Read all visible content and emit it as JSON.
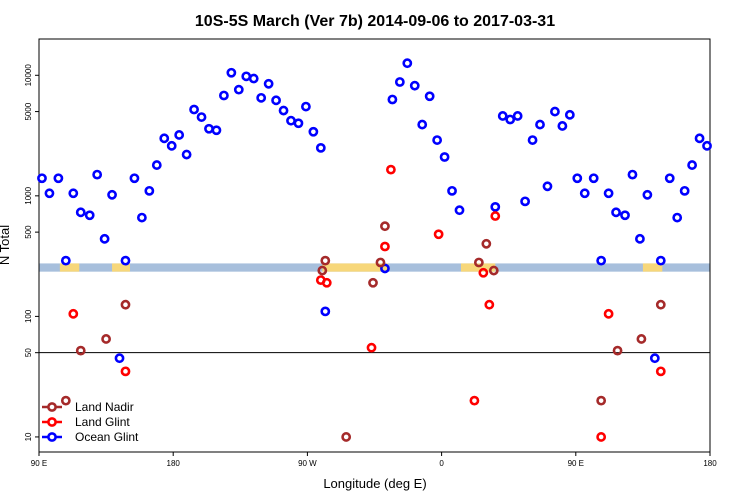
{
  "chart_data": {
    "type": "scatter",
    "title": "10S-5S March (Ver 7b)   2014-09-06 to 2017-03-31",
    "xlabel": "Longitude (deg E)",
    "ylabel": "N Total",
    "x_axis": {
      "range_deg_from_90E": [
        0,
        450
      ],
      "ticks": [
        {
          "value": 0,
          "label": "90 E"
        },
        {
          "value": 90,
          "label": "180"
        },
        {
          "value": 180,
          "label": "90 W"
        },
        {
          "value": 270,
          "label": "0"
        },
        {
          "value": 360,
          "label": "90 E"
        },
        {
          "value": 450,
          "label": "180"
        }
      ]
    },
    "y_axis": {
      "scale": "log",
      "range": [
        7.5,
        20000
      ],
      "ticks": [
        {
          "value": 10,
          "label": "10"
        },
        {
          "value": 50,
          "label": "50"
        },
        {
          "value": 100,
          "label": "100"
        },
        {
          "value": 500,
          "label": "500"
        },
        {
          "value": 1000,
          "label": "1000"
        },
        {
          "value": 5000,
          "label": "5000"
        },
        {
          "value": 10000,
          "label": "10000"
        }
      ]
    },
    "reference_line": 50,
    "map_strip": {
      "y_min": 235,
      "y_max": 275,
      "ocean_color": "#a7bfdc",
      "land_color": "#f7d77a",
      "land_spans": [
        [
          14,
          27
        ],
        [
          49,
          61
        ],
        [
          190,
          234
        ],
        [
          283,
          306
        ],
        [
          405,
          418
        ]
      ]
    },
    "legend": {
      "position": "bottom-left",
      "entries": [
        {
          "label": "Land Nadir",
          "color": "#a52a2a"
        },
        {
          "label": "Land Glint",
          "color": "#ff0000"
        },
        {
          "label": "Ocean Glint",
          "color": "#0000ff"
        }
      ]
    },
    "series": [
      {
        "name": "Ocean Glint",
        "color": "#0000ff",
        "points": [
          [
            2,
            1400
          ],
          [
            7,
            1050
          ],
          [
            13,
            1400
          ],
          [
            18,
            290
          ],
          [
            23,
            1050
          ],
          [
            28,
            730
          ],
          [
            34,
            690
          ],
          [
            39,
            1500
          ],
          [
            44,
            440
          ],
          [
            49,
            1020
          ],
          [
            54,
            45
          ],
          [
            58,
            290
          ],
          [
            64,
            1400
          ],
          [
            69,
            660
          ],
          [
            74,
            1100
          ],
          [
            79,
            1800
          ],
          [
            84,
            3000
          ],
          [
            89,
            2600
          ],
          [
            94,
            3200
          ],
          [
            99,
            2200
          ],
          [
            104,
            5200
          ],
          [
            109,
            4500
          ],
          [
            114,
            3600
          ],
          [
            119,
            3500
          ],
          [
            124,
            6800
          ],
          [
            129,
            10500
          ],
          [
            134,
            7600
          ],
          [
            139,
            9800
          ],
          [
            144,
            9400
          ],
          [
            149,
            6500
          ],
          [
            154,
            8500
          ],
          [
            159,
            6200
          ],
          [
            164,
            5100
          ],
          [
            169,
            4200
          ],
          [
            174,
            4000
          ],
          [
            179,
            5500
          ],
          [
            184,
            3400
          ],
          [
            189,
            2500
          ],
          [
            192,
            110
          ],
          [
            232,
            250
          ],
          [
            237,
            6300
          ],
          [
            242,
            8800
          ],
          [
            247,
            12600
          ],
          [
            252,
            8200
          ],
          [
            257,
            3900
          ],
          [
            262,
            6700
          ],
          [
            267,
            2900
          ],
          [
            272,
            2100
          ],
          [
            277,
            1100
          ],
          [
            282,
            760
          ],
          [
            306,
            810
          ],
          [
            311,
            4600
          ],
          [
            316,
            4300
          ],
          [
            321,
            4600
          ],
          [
            326,
            900
          ],
          [
            331,
            2900
          ],
          [
            336,
            3900
          ],
          [
            341,
            1200
          ],
          [
            346,
            5000
          ],
          [
            351,
            3800
          ],
          [
            356,
            4700
          ],
          [
            361,
            1400
          ],
          [
            366,
            1050
          ],
          [
            372,
            1400
          ],
          [
            377,
            290
          ],
          [
            382,
            1050
          ],
          [
            387,
            730
          ],
          [
            393,
            690
          ],
          [
            398,
            1500
          ],
          [
            403,
            440
          ],
          [
            408,
            1020
          ],
          [
            413,
            45
          ],
          [
            417,
            290
          ],
          [
            423,
            1400
          ],
          [
            428,
            660
          ],
          [
            433,
            1100
          ],
          [
            438,
            1800
          ],
          [
            443,
            3000
          ],
          [
            448,
            2600
          ]
        ]
      },
      {
        "name": "Land Glint",
        "color": "#ff0000",
        "points": [
          [
            23,
            105
          ],
          [
            58,
            35
          ],
          [
            189,
            200
          ],
          [
            193,
            190
          ],
          [
            223,
            55
          ],
          [
            232,
            380
          ],
          [
            236,
            1650
          ],
          [
            268,
            480
          ],
          [
            292,
            20
          ],
          [
            298,
            230
          ],
          [
            302,
            125
          ],
          [
            306,
            680
          ],
          [
            377,
            10
          ],
          [
            382,
            105
          ],
          [
            417,
            35
          ]
        ]
      },
      {
        "name": "Land Nadir",
        "color": "#a52a2a",
        "points": [
          [
            18,
            20
          ],
          [
            28,
            52
          ],
          [
            45,
            65
          ],
          [
            58,
            125
          ],
          [
            190,
            240
          ],
          [
            192,
            290
          ],
          [
            206,
            10
          ],
          [
            224,
            190
          ],
          [
            229,
            280
          ],
          [
            232,
            560
          ],
          [
            295,
            280
          ],
          [
            300,
            400
          ],
          [
            305,
            240
          ],
          [
            377,
            20
          ],
          [
            388,
            52
          ],
          [
            404,
            65
          ],
          [
            417,
            125
          ]
        ]
      }
    ]
  }
}
